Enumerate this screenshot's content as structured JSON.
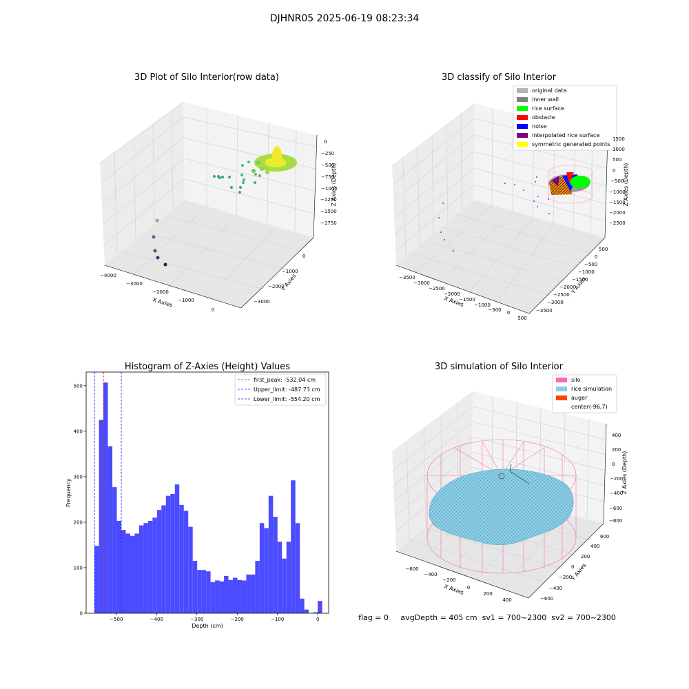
{
  "figure_title": "DJHNR05 2025-06-19 08:23:34",
  "footer_text": "flag = 0     avgDepth = 405 cm  sv1 = 700~2300  sv2 = 700~2300",
  "colors": {
    "hist_bar": "#4b4bff",
    "first_peak": "#e41a1c",
    "limits": "#1f1fff",
    "silo": "#ff69b4",
    "rice": "#87cde6",
    "auger": "#ff4500",
    "rice_surface": "#00e600",
    "obstacle": "#ff0000",
    "noise": "#0000ff",
    "interpolated": "#800080",
    "symmetric": "#ffff00",
    "original": "#b3b3b3",
    "inner_wall": "#808080"
  },
  "chart_data": [
    {
      "type": "scatter",
      "title": "3D Plot of Silo Interior(row data)",
      "xlabel": "X Axies",
      "ylabel": "Y Axies",
      "zlabel": "Z Axies (Depth)",
      "x_ticks": [
        "−4000",
        "−3000",
        "−2000",
        "−1000",
        "0"
      ],
      "y_ticks": [
        "0",
        "−1000",
        "−2000",
        "−3000"
      ],
      "z_ticks": [
        "0",
        "−250",
        "−500",
        "−750",
        "−1000",
        "−1250",
        "−1500",
        "−1750"
      ]
    },
    {
      "type": "scatter",
      "title": "3D classify of Silo Interior",
      "xlabel": "X Axies",
      "ylabel": "Y Axies",
      "zlabel": "Z Axies (Depth)",
      "x_ticks": [
        "−3500",
        "−3000",
        "−2500",
        "−2000",
        "−1500",
        "−1000",
        "−500",
        "0",
        "500"
      ],
      "y_ticks": [
        "500",
        "0",
        "−500",
        "−1000",
        "−1500",
        "−2000",
        "−2500",
        "−3000",
        "−3500"
      ],
      "z_ticks": [
        "1500",
        "1000",
        "500",
        "0",
        "−500",
        "−1000",
        "−1500",
        "−2000",
        "−2500"
      ],
      "legend": [
        "original data",
        "inner wall",
        "rice surface",
        "obstacle",
        "noise",
        "interpolated rice surface",
        "symmetric generated points"
      ]
    },
    {
      "type": "bar",
      "title": "Histogram of Z-Axies (Height) Values",
      "xlabel": "Depth (cm)",
      "ylabel": "Frequency",
      "xlim": [
        -575,
        27
      ],
      "ylim": [
        0,
        530
      ],
      "x_ticks": [
        -500,
        -400,
        -300,
        -200,
        -100,
        0
      ],
      "y_ticks": [
        0,
        100,
        200,
        300,
        400,
        500
      ],
      "bin_start": -554.2,
      "bin_width": 11.08,
      "values": [
        148,
        425,
        507,
        367,
        277,
        203,
        183,
        175,
        170,
        175,
        193,
        198,
        203,
        210,
        227,
        237,
        258,
        262,
        283,
        238,
        225,
        190,
        115,
        95,
        95,
        92,
        68,
        72,
        70,
        82,
        73,
        78,
        73,
        72,
        85,
        85,
        115,
        198,
        187,
        258,
        212,
        157,
        120,
        157,
        292,
        198,
        32,
        8,
        0,
        2,
        27
      ],
      "vlines": [
        {
          "label": "first_peak: -532.04 cm",
          "x": -532.04,
          "color": "#e41a1c"
        },
        {
          "label": "Upper_limit: -487.73 cm",
          "x": -487.73,
          "color": "#1f1fff"
        },
        {
          "label": "Lower_limit: -554.20 cm",
          "x": -554.2,
          "color": "#1f1fff"
        }
      ]
    },
    {
      "type": "other",
      "title": "3D simulation of Silo Interior",
      "xlabel": "X Axies",
      "ylabel": "Y Axies",
      "zlabel": "Z Axies (Depth)",
      "x_ticks": [
        "−600",
        "−400",
        "−200",
        "0",
        "200",
        "400"
      ],
      "y_ticks": [
        "600",
        "400",
        "200",
        "0",
        "−200",
        "−400",
        "−600"
      ],
      "z_ticks": [
        "400",
        "200",
        "0",
        "−200",
        "−400",
        "−600",
        "−800"
      ],
      "legend": [
        "silo",
        "rice simulation",
        "auger",
        "center(-96,7)"
      ]
    }
  ]
}
